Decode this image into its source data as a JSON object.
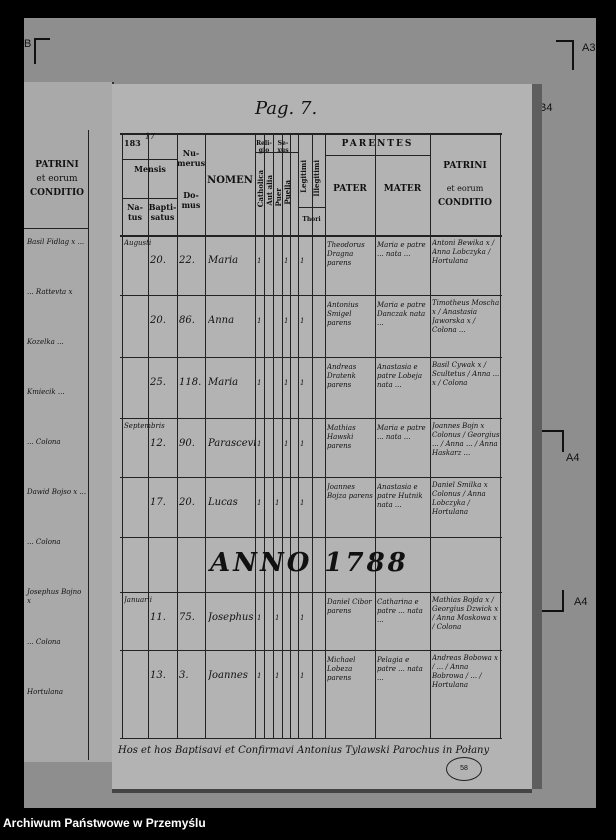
{
  "markers": {
    "top_left": "B",
    "a3": "A3",
    "b4": "B4",
    "a4_1": "A4",
    "a4_2": "A4"
  },
  "page_number": "Pag. 7.",
  "left_fragment": {
    "header": {
      "patrini": "PATRINI",
      "et_eorum": "et eorum",
      "conditio": "CONDITIO"
    },
    "entries": [
      "Basil Fidlag x ...",
      "... Rattevta x",
      "Kozelka ...",
      "Kmiecik ...",
      "... Colona",
      "Dawid Bojso x ...",
      "... Colona",
      "Josephus Bojno x",
      "... Colona",
      "Hortulana"
    ]
  },
  "table": {
    "header": {
      "year": "183",
      "year_fix": "17",
      "mensis": "Mensis",
      "natus": "Na-tus",
      "baptisatus": "Bapti-satus",
      "numerus": "Nu-merus",
      "domus": "Do-mus",
      "nomen": "NOMEN",
      "religio": "Reli-gio",
      "sexus": "Se-xus",
      "catholica": "Catholica",
      "aut_alia": "Aut alia",
      "puer": "Puer",
      "puella": "Puella",
      "legitimi": "Legitimi",
      "illegitimi": "Illegitimi",
      "thori": "Thori",
      "parentes": "PARENTES",
      "pater": "PATER",
      "mater": "MATER",
      "patrini": "PATRINI",
      "et_eorum": "et eorum",
      "conditio": "CONDITIO"
    },
    "rows": [
      {
        "month": "Augusti",
        "day": "20.",
        "house": "22.",
        "name": "Maria",
        "catholica": "1",
        "puer": "",
        "puella": "1",
        "legitimi": "1",
        "pater": "Theodorus Dragna parens",
        "mater": "Maria e patre ... nata ...",
        "patrini": "Antoni Bewika x / Anna Lobczyka / Hortulana"
      },
      {
        "month": "",
        "day": "20.",
        "house": "86.",
        "name": "Anna",
        "catholica": "1",
        "puer": "",
        "puella": "1",
        "legitimi": "1",
        "pater": "Antonius Smigel parens",
        "mater": "Maria e patre Danczak nata ...",
        "patrini": "Timotheus Moscha x / Anastasia Jaworska x / Colona ..."
      },
      {
        "month": "",
        "day": "25.",
        "house": "118.",
        "name": "Maria",
        "catholica": "1",
        "puer": "",
        "puella": "1",
        "legitimi": "1",
        "pater": "Andreas Dratenk parens",
        "mater": "Anastasia e patre Lobeja nata ...",
        "patrini": "Basil Cywak x / Scultetus / Anna ... x / Colona"
      },
      {
        "month": "Septembris",
        "day": "12.",
        "house": "90.",
        "name": "Parascevia",
        "catholica": "1",
        "puer": "",
        "puella": "1",
        "legitimi": "1",
        "pater": "Mathias Hawski parens",
        "mater": "Maria e patre ... nata ...",
        "patrini": "Joannes Bojn x Colonus / Georgius ... / Anna ... / Anna Haskarz ..."
      },
      {
        "month": "",
        "day": "17.",
        "house": "20.",
        "name": "Lucas",
        "catholica": "1",
        "puer": "1",
        "puella": "",
        "legitimi": "1",
        "pater": "Joannes Bojza parens",
        "mater": "Anastasia e patre Hutnik nata ...",
        "patrini": "Daniel Smilka x Colonus / Anna Lobczyka / Hortulana"
      },
      {
        "anno": "ANNO 1788"
      },
      {
        "month": "Januarii",
        "day": "11.",
        "house": "75.",
        "name": "Josephus",
        "catholica": "1",
        "puer": "1",
        "puella": "",
        "legitimi": "1",
        "pater": "Daniel Cibor parens",
        "mater": "Catharina e patre ... nata ...",
        "patrini": "Mathias Bojda x / Georgius Dzwick x / Anna Moskowa x / Colona"
      },
      {
        "month": "",
        "day": "13.",
        "house": "3.",
        "name": "Joannes",
        "catholica": "1",
        "puer": "1",
        "puella": "",
        "legitimi": "1",
        "pater": "Michael Lobeza parens",
        "mater": "Pelagia e patre ... nata ...",
        "patrini": "Andreas Bobowa x / ... / Anna Bobrowa / ... / Hortulana"
      }
    ]
  },
  "footer_note": "Hos et hos Baptisavi et Confirmavi Antonius Tylawski Parochus in Połany",
  "stamp": "58",
  "caption": "Archiwum Państwowe w Przemyślu"
}
